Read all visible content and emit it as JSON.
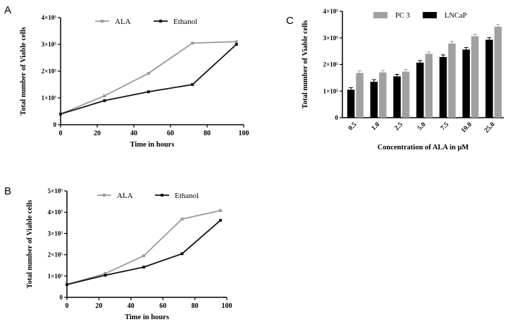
{
  "chart_data": [
    {
      "panel_label": "A",
      "type": "line",
      "title": "",
      "xlabel": "Time in hours",
      "ylabel": "Total number of Viable cells",
      "xlim": [
        0,
        100
      ],
      "ylim": [
        0,
        400000
      ],
      "x_ticks": [
        0,
        20,
        40,
        60,
        80,
        100
      ],
      "y_ticks": [
        0,
        100000,
        200000,
        300000,
        400000
      ],
      "y_tick_labels": [
        "0",
        "1×10⁵",
        "2×10⁵",
        "3×10⁵",
        "4×10⁵"
      ],
      "legend_placement": "top",
      "x": [
        0,
        24,
        48,
        72,
        96
      ],
      "series": [
        {
          "name": "ALA",
          "color": "#9a9a9a",
          "values": [
            40000,
            108000,
            192000,
            305000,
            310000
          ]
        },
        {
          "name": "Ethanol",
          "color": "#111111",
          "values": [
            40000,
            90000,
            123000,
            150000,
            300000
          ]
        }
      ]
    },
    {
      "panel_label": "B",
      "type": "line",
      "title": "",
      "xlabel": "Time in hours",
      "ylabel": "Total number of Viable cells",
      "xlim": [
        0,
        100
      ],
      "ylim": [
        0,
        500000
      ],
      "x_ticks": [
        0,
        20,
        40,
        60,
        80,
        100
      ],
      "y_ticks": [
        0,
        100000,
        200000,
        300000,
        400000,
        500000
      ],
      "y_tick_labels": [
        "0",
        "1×10⁵",
        "2×10⁵",
        "3×10⁵",
        "4×10⁵",
        "5×10⁵"
      ],
      "legend_placement": "top",
      "x": [
        0,
        24,
        48,
        72,
        96
      ],
      "series": [
        {
          "name": "ALA",
          "color": "#9a9a9a",
          "values": [
            60000,
            112000,
            195000,
            368000,
            408000
          ]
        },
        {
          "name": "Ethanol",
          "color": "#111111",
          "values": [
            60000,
            104000,
            142000,
            205000,
            362000
          ]
        }
      ]
    },
    {
      "panel_label": "C",
      "type": "bar",
      "title": "",
      "xlabel": "Concentration of ALA in μM",
      "ylabel": "Total number of Viable cells",
      "ylim": [
        0,
        400000
      ],
      "y_ticks": [
        0,
        100000,
        200000,
        300000,
        400000
      ],
      "y_tick_labels": [
        "0",
        "1×10⁵",
        "2×10⁵",
        "3×10⁵",
        "4×10⁵"
      ],
      "legend_placement": "top",
      "categories": [
        "0.5",
        "1.0",
        "2.5",
        "5.0",
        "7.5",
        "10.0",
        "25.0"
      ],
      "series": [
        {
          "name": "LNCaP",
          "color": "#000000",
          "values": [
            105000,
            135000,
            155000,
            207000,
            228000,
            256000,
            293000
          ]
        },
        {
          "name": "PC 3",
          "color": "#a0a0a0",
          "values": [
            168000,
            170000,
            173000,
            240000,
            279000,
            306000,
            342000
          ]
        }
      ],
      "legend_order": [
        "PC 3",
        "LNCaP"
      ]
    }
  ]
}
